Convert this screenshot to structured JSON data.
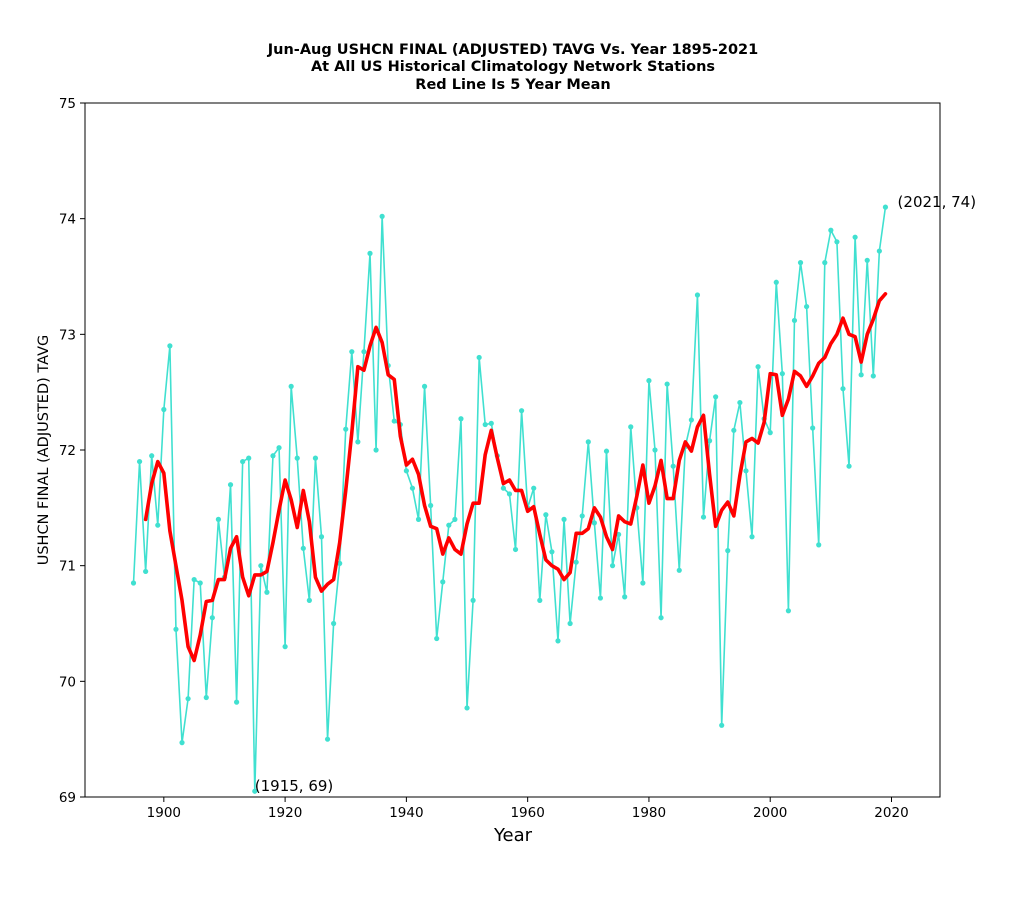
{
  "chart_data": {
    "type": "line",
    "title_lines": [
      "Jun-Aug USHCN FINAL (ADJUSTED) TAVG Vs. Year 1895-2021",
      "At All US Historical Climatology Network Stations",
      "Red Line Is 5 Year Mean"
    ],
    "xlabel": "Year",
    "ylabel": "USHCN FINAL (ADJUSTED) TAVG",
    "xlim": [
      1887,
      2028
    ],
    "ylim": [
      69,
      75
    ],
    "x_ticks": [
      "1900",
      "1920",
      "1940",
      "1960",
      "1980",
      "2000",
      "2020"
    ],
    "y_ticks": [
      "69",
      "70",
      "71",
      "72",
      "73",
      "74",
      "75"
    ],
    "grid": false,
    "series": [
      {
        "style": "line-with-markers",
        "color": "#40e0d0",
        "x_start": 1895,
        "values": [
          70.85,
          71.9,
          70.95,
          71.95,
          71.35,
          72.35,
          72.9,
          70.45,
          69.47,
          69.85,
          70.88,
          70.85,
          69.86,
          70.55,
          71.4,
          70.9,
          71.7,
          69.82,
          71.9,
          71.93,
          69.05,
          71.0,
          70.77,
          71.95,
          72.02,
          70.3,
          72.55,
          71.93,
          71.15,
          70.7,
          71.93,
          71.25,
          69.5,
          70.5,
          71.02,
          72.18,
          72.85,
          72.07,
          72.85,
          73.7,
          72.0,
          74.02,
          72.73,
          72.25,
          72.22,
          71.82,
          71.67,
          71.4,
          72.55,
          71.52,
          70.37,
          70.86,
          71.35,
          71.4,
          72.27,
          69.77,
          70.7,
          72.8,
          72.22,
          72.23,
          71.95,
          71.67,
          71.62,
          71.14,
          72.34,
          71.5,
          71.67,
          70.7,
          71.44,
          71.12,
          70.35,
          71.4,
          70.5,
          71.03,
          71.43,
          72.07,
          71.37,
          70.72,
          71.99,
          71.0,
          71.27,
          70.73,
          72.2,
          71.5,
          70.85,
          72.6,
          72.0,
          70.55,
          72.57,
          71.86,
          70.96,
          72.03,
          72.26,
          73.34,
          71.42,
          72.08,
          72.46,
          69.62,
          71.13,
          72.17,
          72.41,
          71.82,
          71.25,
          72.72,
          72.27,
          72.15,
          73.45,
          72.66,
          70.61,
          73.12,
          73.62,
          73.24,
          72.19,
          71.18,
          73.62,
          73.9,
          73.8,
          72.53,
          71.86,
          73.84,
          72.65,
          73.64,
          72.64,
          73.72,
          74.1
        ]
      },
      {
        "style": "line",
        "color": "#ff0000",
        "x_start": 1897,
        "values": [
          71.4,
          71.71,
          71.9,
          71.8,
          71.3,
          71.0,
          70.7,
          70.3,
          70.18,
          70.4,
          70.69,
          70.7,
          70.88,
          70.88,
          71.15,
          71.25,
          70.9,
          70.74,
          70.92,
          70.92,
          70.95,
          71.2,
          71.48,
          71.74,
          71.57,
          71.33,
          71.65,
          71.38,
          70.9,
          70.78,
          70.84,
          70.88,
          71.2,
          71.65,
          72.15,
          72.72,
          72.69,
          72.9,
          73.06,
          72.93,
          72.65,
          72.61,
          72.12,
          71.87,
          71.92,
          71.79,
          71.52,
          71.34,
          71.32,
          71.1,
          71.24,
          71.14,
          71.1,
          71.36,
          71.54,
          71.54,
          71.96,
          72.17,
          71.93,
          71.71,
          71.74,
          71.65,
          71.65,
          71.47,
          71.51,
          71.27,
          71.05,
          71.0,
          70.97,
          70.88,
          70.94,
          71.28,
          71.28,
          71.32,
          71.5,
          71.42,
          71.25,
          71.14,
          71.43,
          71.38,
          71.36,
          71.6,
          71.87,
          71.54,
          71.69,
          71.91,
          71.58,
          71.58,
          71.91,
          72.07,
          71.99,
          72.2,
          72.3,
          71.79,
          71.34,
          71.48,
          71.55,
          71.43,
          71.78,
          72.07,
          72.1,
          72.06,
          72.24,
          72.66,
          72.65,
          72.3,
          72.44,
          72.68,
          72.64,
          72.55,
          72.64,
          72.75,
          72.8,
          72.92,
          73.0,
          73.14,
          73.0,
          72.98,
          72.76,
          73.0,
          73.13,
          73.29,
          73.35
        ]
      }
    ],
    "annotations": [
      {
        "text": "(2021, 74)",
        "x": 2021,
        "y": 74.1
      },
      {
        "text": "(1915, 69)",
        "x": 1915,
        "y": 69.05
      }
    ]
  }
}
